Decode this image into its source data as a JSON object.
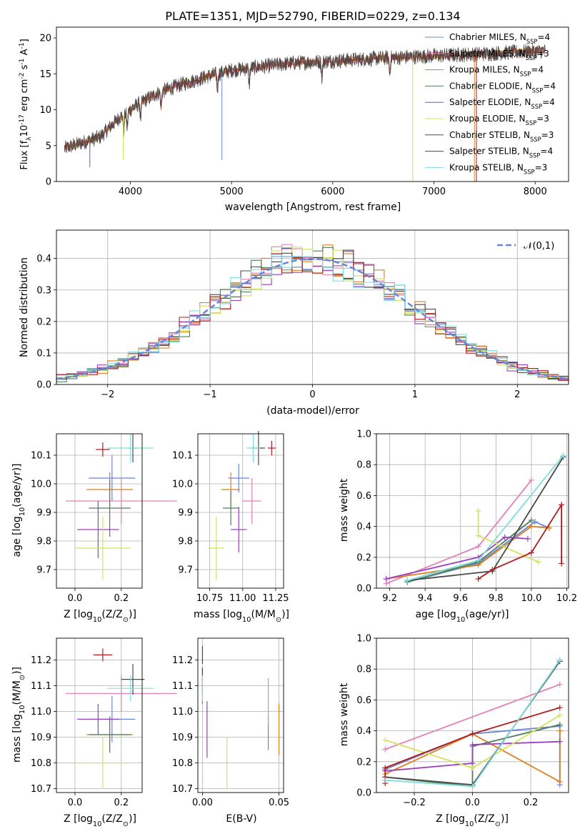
{
  "figure": {
    "title": "PLATE=1351, MJD=52790, FIBERID=0229, z=0.134"
  },
  "models": [
    {
      "label": "Chabrier MILES, N$_{SSP}$=4",
      "color": "#6a85d8"
    },
    {
      "label": "Salpeter MILES, N$_{SSP}$=3",
      "color": "#e381b8"
    },
    {
      "label": "Kroupa MILES, N$_{SSP}$=4",
      "color": "#d9811f"
    },
    {
      "label": "Chabrier ELODIE, N$_{SSP}$=4",
      "color": "#4e7f58"
    },
    {
      "label": "Salpeter ELODIE, N$_{SSP}$=4",
      "color": "#9b3fc1"
    },
    {
      "label": "Kroupa ELODIE, N$_{SSP}$=3",
      "color": "#d4e35b"
    },
    {
      "label": "Chabrier STELIB, N$_{SSP}$=3",
      "color": "#4a4a4a"
    },
    {
      "label": "Salpeter STELIB, N$_{SSP}$=4",
      "color": "#b01c1c"
    },
    {
      "label": "Kroupa STELIB, N$_{SSP}$=3",
      "color": "#7fdde0"
    }
  ],
  "chart_data": [
    {
      "id": "spectrum",
      "type": "line",
      "xlabel": "wavelength [Angstrom, rest frame]",
      "ylabel": "Flux [f$_\\lambda$10$^{-17}$ erg cm$^{-2}$ s$^{-1}$ A$^{-1}$]",
      "xlim": [
        3270,
        8330
      ],
      "ylim": [
        0,
        21.5
      ],
      "xticks": [
        4000,
        5000,
        6000,
        7000,
        8000
      ],
      "yticks": [
        0,
        5,
        10,
        15,
        20
      ],
      "x_range_data": [
        3350,
        8100
      ],
      "continuum": [
        [
          3350,
          4.6
        ],
        [
          3500,
          5.3
        ],
        [
          3700,
          6.2
        ],
        [
          3900,
          9.0
        ],
        [
          4100,
          11.0
        ],
        [
          4300,
          12.5
        ],
        [
          4500,
          13.5
        ],
        [
          4800,
          14.8
        ],
        [
          5000,
          15.5
        ],
        [
          5300,
          16.0
        ],
        [
          5600,
          16.5
        ],
        [
          6000,
          16.8
        ],
        [
          6500,
          17.2
        ],
        [
          7000,
          17.5
        ],
        [
          7500,
          17.8
        ],
        [
          8100,
          18.2
        ]
      ],
      "grid": false
    },
    {
      "id": "residuals",
      "type": "histogram",
      "xlabel": "(data-model)/error",
      "ylabel": "Normed distribution",
      "xlim": [
        -2.5,
        2.5
      ],
      "ylim": [
        0,
        0.49
      ],
      "xticks": [
        -2,
        -1,
        0,
        1,
        2
      ],
      "yticks": [
        0.0,
        0.1,
        0.2,
        0.3,
        0.4
      ],
      "bin_width": 0.1,
      "reference_curve": "$\\mathcal{N}(0,1)$",
      "grid": true,
      "legend": "top-right"
    },
    {
      "id": "age_vs_Z",
      "type": "errorbar",
      "xlabel": "Z [log$_{10}$(Z/Z$_\\odot$)]",
      "ylabel": "age  [log$_{10}$(age/yr)]",
      "xlim": [
        -0.08,
        0.29
      ],
      "ylim": [
        9.635,
        10.175
      ],
      "xticks": [
        0.0,
        0.2
      ],
      "yticks": [
        9.7,
        9.8,
        9.9,
        10.0,
        10.1
      ],
      "points": [
        {
          "model": 0,
          "x": 0.16,
          "y": 10.02,
          "xerr": 0.1,
          "yerr": 0.08
        },
        {
          "model": 1,
          "x": 0.2,
          "y": 9.94,
          "xerr": 0.24,
          "yerr": 0.08
        },
        {
          "model": 2,
          "x": 0.15,
          "y": 9.98,
          "xerr": 0.1,
          "yerr": 0.06
        },
        {
          "model": 3,
          "x": 0.15,
          "y": 9.915,
          "xerr": 0.09,
          "yerr": 0.1
        },
        {
          "model": 4,
          "x": 0.1,
          "y": 9.84,
          "xerr": 0.09,
          "yerr": 0.1
        },
        {
          "model": 5,
          "x": 0.12,
          "y": 9.775,
          "xerr": 0.12,
          "yerr": 0.11
        },
        {
          "model": 6,
          "x": 0.25,
          "y": 10.125,
          "xerr": 0.02,
          "yerr": 0.05
        },
        {
          "model": 7,
          "x": 0.12,
          "y": 10.12,
          "xerr": 0.03,
          "yerr": 0.025
        },
        {
          "model": 8,
          "x": 0.24,
          "y": 10.125,
          "xerr": 0.1,
          "yerr": 0.05
        }
      ]
    },
    {
      "id": "age_vs_mass",
      "type": "errorbar",
      "xlabel": "mass [log$_{10}$(M/M$_\\odot$)]",
      "ylabel": "",
      "xlim": [
        10.66,
        11.31
      ],
      "ylim": [
        9.635,
        10.175
      ],
      "xticks": [
        10.75,
        11.0,
        11.25
      ],
      "yticks": [
        9.7,
        9.8,
        9.9,
        10.0,
        10.1
      ],
      "points": [
        {
          "model": 0,
          "x": 10.97,
          "y": 10.02,
          "xerr": 0.08,
          "yerr": 0.05
        },
        {
          "model": 1,
          "x": 11.07,
          "y": 9.94,
          "xerr": 0.07,
          "yerr": 0.08
        },
        {
          "model": 2,
          "x": 10.91,
          "y": 9.98,
          "xerr": 0.07,
          "yerr": 0.06
        },
        {
          "model": 3,
          "x": 10.91,
          "y": 9.915,
          "xerr": 0.06,
          "yerr": 0.06
        },
        {
          "model": 4,
          "x": 10.97,
          "y": 9.84,
          "xerr": 0.06,
          "yerr": 0.08
        },
        {
          "model": 5,
          "x": 10.8,
          "y": 9.775,
          "xerr": 0.06,
          "yerr": 0.11
        },
        {
          "model": 6,
          "x": 11.12,
          "y": 10.125,
          "xerr": 0.05,
          "yerr": 0.06
        },
        {
          "model": 7,
          "x": 11.22,
          "y": 10.125,
          "xerr": 0.03,
          "yerr": 0.025
        },
        {
          "model": 8,
          "x": 11.08,
          "y": 10.125,
          "xerr": 0.05,
          "yerr": 0.05
        }
      ]
    },
    {
      "id": "massweight_vs_age",
      "type": "line",
      "xlabel": "age  [log$_{10}$(age/yr)]",
      "ylabel": "mass weight",
      "xlim": [
        9.125,
        10.21
      ],
      "ylim": [
        0,
        1.0
      ],
      "xticks": [
        9.2,
        9.4,
        9.6,
        9.8,
        10.0,
        10.2
      ],
      "yticks": [
        0.0,
        0.2,
        0.4,
        0.6,
        0.8,
        1.0
      ],
      "grid": true,
      "series": [
        {
          "model": 0,
          "x": [
            9.3,
            9.7,
            10.02,
            10.1
          ],
          "y": [
            0.04,
            0.16,
            0.43,
            0.39
          ]
        },
        {
          "model": 1,
          "x": [
            9.18,
            9.7,
            10.0
          ],
          "y": [
            0.03,
            0.27,
            0.7
          ]
        },
        {
          "model": 2,
          "x": [
            9.18,
            9.7,
            10.0,
            10.1
          ],
          "y": [
            0.06,
            0.15,
            0.4,
            0.39
          ]
        },
        {
          "model": 3,
          "x": [
            9.3,
            9.7,
            10.0
          ],
          "y": [
            0.04,
            0.17,
            0.44
          ]
        },
        {
          "model": 4,
          "x": [
            9.18,
            9.7,
            9.85,
            9.98
          ],
          "y": [
            0.06,
            0.2,
            0.33,
            0.32
          ]
        },
        {
          "model": 5,
          "x": [
            9.7,
            9.7,
            10.04
          ],
          "y": [
            0.5,
            0.34,
            0.17
          ]
        },
        {
          "model": 6,
          "x": [
            9.3,
            9.78,
            10.18
          ],
          "y": [
            0.05,
            0.11,
            0.85
          ]
        },
        {
          "model": 7,
          "x": [
            9.7,
            9.78,
            10.0,
            10.17,
            10.17
          ],
          "y": [
            0.06,
            0.12,
            0.23,
            0.54,
            0.16
          ]
        },
        {
          "model": 8,
          "x": [
            9.3,
            9.7,
            10.18
          ],
          "y": [
            0.05,
            0.18,
            0.86
          ]
        }
      ]
    },
    {
      "id": "mass_vs_Z",
      "type": "errorbar",
      "xlabel": "Z [log$_{10}$(Z/Z$_\\odot$)]",
      "ylabel": "mass [log$_{10}$(M/M$_\\odot$)]",
      "xlim": [
        -0.08,
        0.29
      ],
      "ylim": [
        10.685,
        11.285
      ],
      "xticks": [
        0.0,
        0.2
      ],
      "yticks": [
        10.7,
        10.8,
        10.9,
        11.0,
        11.1,
        11.2
      ],
      "points": [
        {
          "model": 0,
          "x": 0.16,
          "y": 10.97,
          "xerr": 0.1,
          "yerr": 0.09
        },
        {
          "model": 1,
          "x": 0.2,
          "y": 11.07,
          "xerr": 0.24,
          "yerr": 0.07
        },
        {
          "model": 2,
          "x": 0.15,
          "y": 10.91,
          "xerr": 0.1,
          "yerr": 0.07
        },
        {
          "model": 3,
          "x": 0.15,
          "y": 10.91,
          "xerr": 0.09,
          "yerr": 0.07
        },
        {
          "model": 4,
          "x": 0.1,
          "y": 10.97,
          "xerr": 0.09,
          "yerr": 0.06
        },
        {
          "model": 5,
          "x": 0.12,
          "y": 10.8,
          "xerr": 0.12,
          "yerr": 0.1
        },
        {
          "model": 6,
          "x": 0.25,
          "y": 11.125,
          "xerr": 0.05,
          "yerr": 0.06
        },
        {
          "model": 7,
          "x": 0.12,
          "y": 11.22,
          "xerr": 0.04,
          "yerr": 0.025
        },
        {
          "model": 8,
          "x": 0.24,
          "y": 11.09,
          "xerr": 0.1,
          "yerr": 0.05
        }
      ]
    },
    {
      "id": "mass_vs_ebv",
      "type": "errorbar",
      "xlabel": "E(B-V)",
      "ylabel": "",
      "xlim": [
        -0.003,
        0.053
      ],
      "ylim": [
        10.685,
        11.285
      ],
      "xticks": [
        0.0,
        0.05
      ],
      "yticks": [
        10.7,
        10.8,
        10.9,
        11.0,
        11.1,
        11.2
      ],
      "points": [
        {
          "model": 0,
          "x": 0.043,
          "y": 10.92,
          "xerr": 0.0,
          "yerr": 0.07
        },
        {
          "model": 1,
          "x": 0.043,
          "y": 11.04,
          "xerr": 0.0,
          "yerr": 0.09
        },
        {
          "model": 2,
          "x": 0.05,
          "y": 10.93,
          "xerr": 0.0,
          "yerr": 0.1
        },
        {
          "model": 3,
          "x": 0.0,
          "y": 11.1,
          "xerr": 0.0,
          "yerr": 0.07
        },
        {
          "model": 4,
          "x": 0.003,
          "y": 10.93,
          "xerr": 0.0,
          "yerr": 0.11
        },
        {
          "model": 5,
          "x": 0.016,
          "y": 10.8,
          "xerr": 0.0,
          "yerr": 0.1
        },
        {
          "model": 6,
          "x": 0.0,
          "y": 11.12,
          "xerr": 0.0,
          "yerr": 0.05
        },
        {
          "model": 7,
          "x": 0.0,
          "y": 11.22,
          "xerr": 0.0,
          "yerr": 0.035
        },
        {
          "model": 8,
          "x": 0.0,
          "y": 11.09,
          "xerr": 0.0,
          "yerr": 0.05
        }
      ]
    },
    {
      "id": "massweight_vs_Z",
      "type": "line",
      "xlabel": "Z [log$_{10}$(Z/Z$_\\odot$)]",
      "ylabel": "mass weight",
      "xlim": [
        -0.33,
        0.33
      ],
      "ylim": [
        0,
        1.0
      ],
      "xticks": [
        -0.2,
        0.0,
        0.2
      ],
      "yticks": [
        0.0,
        0.2,
        0.4,
        0.6,
        0.8,
        1.0
      ],
      "grid": true,
      "series": [
        {
          "model": 0,
          "x": [
            -0.3,
            0.0,
            0.0,
            0.3,
            0.3
          ],
          "y": [
            0.15,
            0.38,
            0.38,
            0.43,
            0.05
          ]
        },
        {
          "model": 1,
          "x": [
            -0.3,
            0.3
          ],
          "y": [
            0.28,
            0.7
          ]
        },
        {
          "model": 2,
          "x": [
            -0.3,
            0.0,
            0.3,
            0.3
          ],
          "y": [
            0.12,
            0.38,
            0.07,
            0.4
          ]
        },
        {
          "model": 3,
          "x": [
            -0.3,
            0.0,
            0.0,
            0.3
          ],
          "y": [
            0.1,
            0.04,
            0.3,
            0.44
          ]
        },
        {
          "model": 4,
          "x": [
            -0.3,
            0.0,
            0.0,
            0.3
          ],
          "y": [
            0.14,
            0.19,
            0.31,
            0.33
          ]
        },
        {
          "model": 5,
          "x": [
            -0.3,
            0.0,
            0.3
          ],
          "y": [
            0.34,
            0.16,
            0.5
          ]
        },
        {
          "model": 6,
          "x": [
            -0.3,
            0.0,
            0.3
          ],
          "y": [
            0.1,
            0.05,
            0.85
          ]
        },
        {
          "model": 7,
          "x": [
            -0.3,
            -0.3,
            0.0,
            0.3
          ],
          "y": [
            0.06,
            0.16,
            0.38,
            0.55
          ]
        },
        {
          "model": 8,
          "x": [
            -0.3,
            0.0,
            0.3
          ],
          "y": [
            0.08,
            0.04,
            0.86
          ]
        }
      ]
    }
  ]
}
